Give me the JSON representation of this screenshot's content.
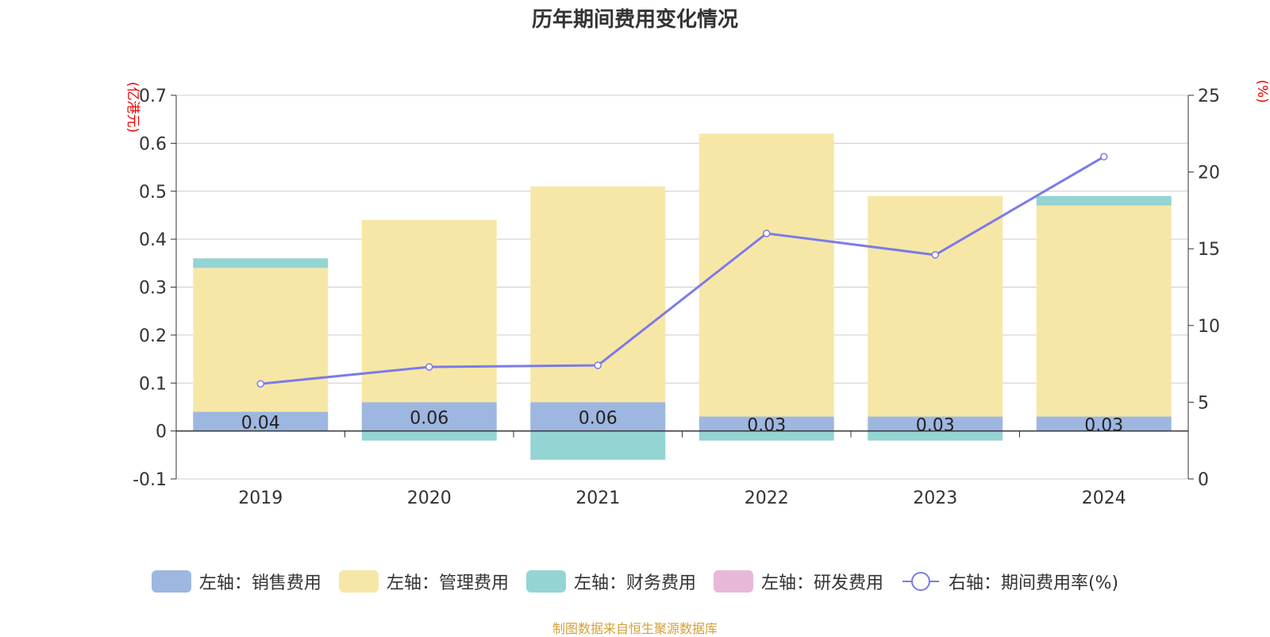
{
  "title": "历年期间费用变化情况",
  "left_unit": "(亿港元)",
  "right_unit": "(%)",
  "source": "制图数据来自恒生聚源数据库",
  "colors": {
    "sales": "#9db7e0",
    "admin": "#f7e7a7",
    "finance": "#94d4d2",
    "rd": "#e8b8d8",
    "rate": "#7b7be8",
    "unit_text": "#ee0000",
    "source_text": "#d4a03a",
    "grid": "#cccccc",
    "axis": "#333333"
  },
  "legend": [
    {
      "label": "左轴：销售费用",
      "kind": "bar",
      "color_key": "sales"
    },
    {
      "label": "左轴：管理费用",
      "kind": "bar",
      "color_key": "admin"
    },
    {
      "label": "左轴：财务费用",
      "kind": "bar",
      "color_key": "finance"
    },
    {
      "label": "左轴：研发费用",
      "kind": "bar",
      "color_key": "rd"
    },
    {
      "label": "右轴：期间费用率(%)",
      "kind": "line",
      "color_key": "rate"
    }
  ],
  "chart_data": {
    "type": "bar",
    "categories": [
      "2019",
      "2020",
      "2021",
      "2022",
      "2023",
      "2024"
    ],
    "series": [
      {
        "name": "左轴：销售费用",
        "axis": "left",
        "color_key": "sales",
        "values": [
          0.04,
          0.06,
          0.06,
          0.03,
          0.03,
          0.03
        ]
      },
      {
        "name": "左轴：管理费用",
        "axis": "left",
        "color_key": "admin",
        "values": [
          0.3,
          0.38,
          0.45,
          0.59,
          0.46,
          0.44
        ]
      },
      {
        "name": "左轴：财务费用",
        "axis": "left",
        "color_key": "finance",
        "values": [
          0.02,
          -0.02,
          -0.06,
          -0.02,
          -0.02,
          0.02
        ]
      },
      {
        "name": "左轴：研发费用",
        "axis": "left",
        "color_key": "rd",
        "values": [
          0,
          0,
          0,
          0,
          0,
          0
        ]
      },
      {
        "name": "右轴：期间费用率(%)",
        "axis": "right",
        "type": "line",
        "color_key": "rate",
        "values": [
          6.2,
          7.3,
          7.4,
          16.0,
          14.6,
          21.0
        ]
      }
    ],
    "data_labels": [
      "0.04",
      "0.06",
      "0.06",
      "0.03",
      "0.03",
      "0.03"
    ],
    "left_ticks": [
      "0.7",
      "0.6",
      "0.5",
      "0.4",
      "0.3",
      "0.2",
      "0.1",
      "0",
      "-0.1"
    ],
    "right_ticks": [
      "25",
      "20",
      "15",
      "10",
      "5",
      "0"
    ],
    "ylim_left": [
      -0.1,
      0.7
    ],
    "ylim_right": [
      0,
      25
    ],
    "grid": true,
    "legend_position": "bottom"
  }
}
